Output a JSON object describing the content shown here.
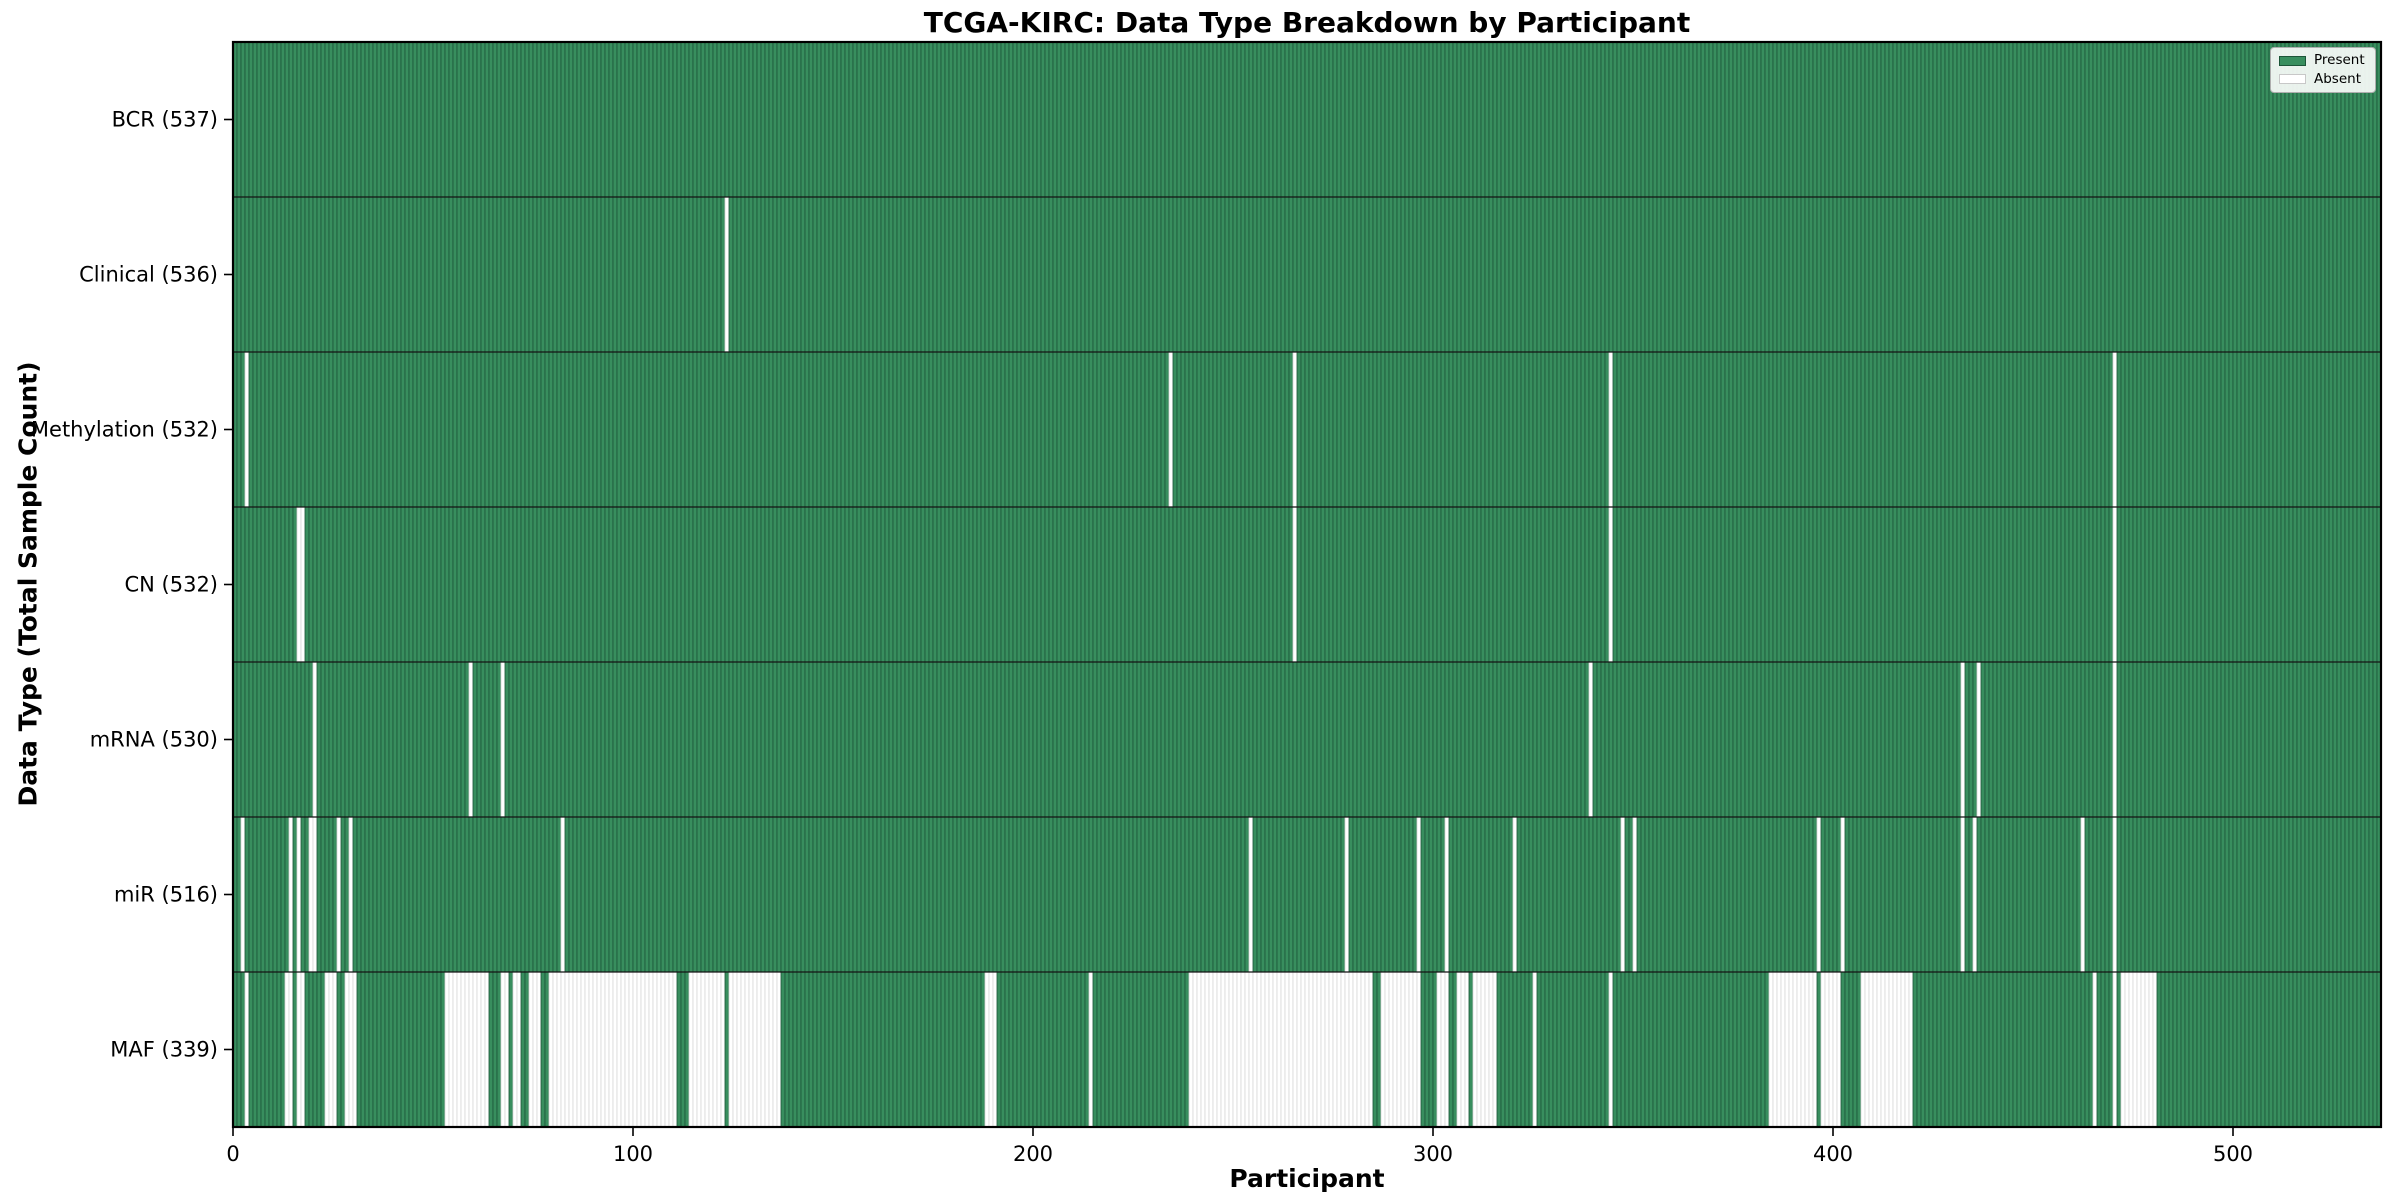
{
  "chart_data": {
    "type": "heatmap",
    "title": "TCGA-KIRC: Data Type Breakdown by Participant",
    "xlabel": "Participant",
    "ylabel": "Data Type (Total Sample Count)",
    "x_ticks": [
      0,
      100,
      200,
      300,
      400,
      500
    ],
    "x_range": [
      0,
      537
    ],
    "n_participants": 537,
    "grid": false,
    "legend": {
      "position": "upper right",
      "present_label": "Present",
      "absent_label": "Absent"
    },
    "colors": {
      "present": "#388E5E",
      "present_edge": "#1C5538",
      "absent": "#FFFFFF",
      "absent_edge": "#D8D8D8",
      "row_divider": "#141414",
      "plot_border": "#000000",
      "text": "#000000"
    },
    "rows": [
      {
        "label": "BCR",
        "total": 537,
        "absent_ranges": []
      },
      {
        "label": "Clinical",
        "total": 536,
        "absent_ranges": [
          [
            123,
            123
          ]
        ]
      },
      {
        "label": "Methylation",
        "total": 532,
        "absent_ranges": [
          [
            3,
            3
          ],
          [
            234,
            234
          ],
          [
            265,
            265
          ],
          [
            344,
            344
          ],
          [
            470,
            470
          ]
        ]
      },
      {
        "label": "CN",
        "total": 532,
        "absent_ranges": [
          [
            16,
            17
          ],
          [
            265,
            265
          ],
          [
            344,
            344
          ],
          [
            470,
            470
          ]
        ]
      },
      {
        "label": "mRNA",
        "total": 530,
        "absent_ranges": [
          [
            20,
            20
          ],
          [
            59,
            59
          ],
          [
            67,
            67
          ],
          [
            339,
            339
          ],
          [
            432,
            432
          ],
          [
            436,
            436
          ],
          [
            470,
            470
          ]
        ]
      },
      {
        "label": "miR",
        "total": 516,
        "absent_ranges": [
          [
            2,
            2
          ],
          [
            14,
            14
          ],
          [
            16,
            16
          ],
          [
            19,
            20
          ],
          [
            26,
            26
          ],
          [
            29,
            29
          ],
          [
            82,
            82
          ],
          [
            254,
            254
          ],
          [
            278,
            278
          ],
          [
            296,
            296
          ],
          [
            303,
            303
          ],
          [
            320,
            320
          ],
          [
            347,
            347
          ],
          [
            350,
            350
          ],
          [
            396,
            396
          ],
          [
            402,
            402
          ],
          [
            432,
            432
          ],
          [
            435,
            435
          ],
          [
            462,
            462
          ],
          [
            470,
            470
          ]
        ]
      },
      {
        "label": "MAF",
        "total": 339,
        "absent_ranges": [
          [
            3,
            3
          ],
          [
            13,
            14
          ],
          [
            16,
            17
          ],
          [
            23,
            25
          ],
          [
            28,
            30
          ],
          [
            53,
            63
          ],
          [
            67,
            68
          ],
          [
            70,
            71
          ],
          [
            74,
            76
          ],
          [
            79,
            110
          ],
          [
            114,
            122
          ],
          [
            124,
            136
          ],
          [
            188,
            190
          ],
          [
            214,
            214
          ],
          [
            239,
            284
          ],
          [
            287,
            296
          ],
          [
            301,
            303
          ],
          [
            306,
            308
          ],
          [
            310,
            315
          ],
          [
            325,
            325
          ],
          [
            344,
            344
          ],
          [
            384,
            395
          ],
          [
            397,
            401
          ],
          [
            407,
            419
          ],
          [
            465,
            465
          ],
          [
            470,
            470
          ],
          [
            472,
            480
          ]
        ]
      }
    ]
  }
}
